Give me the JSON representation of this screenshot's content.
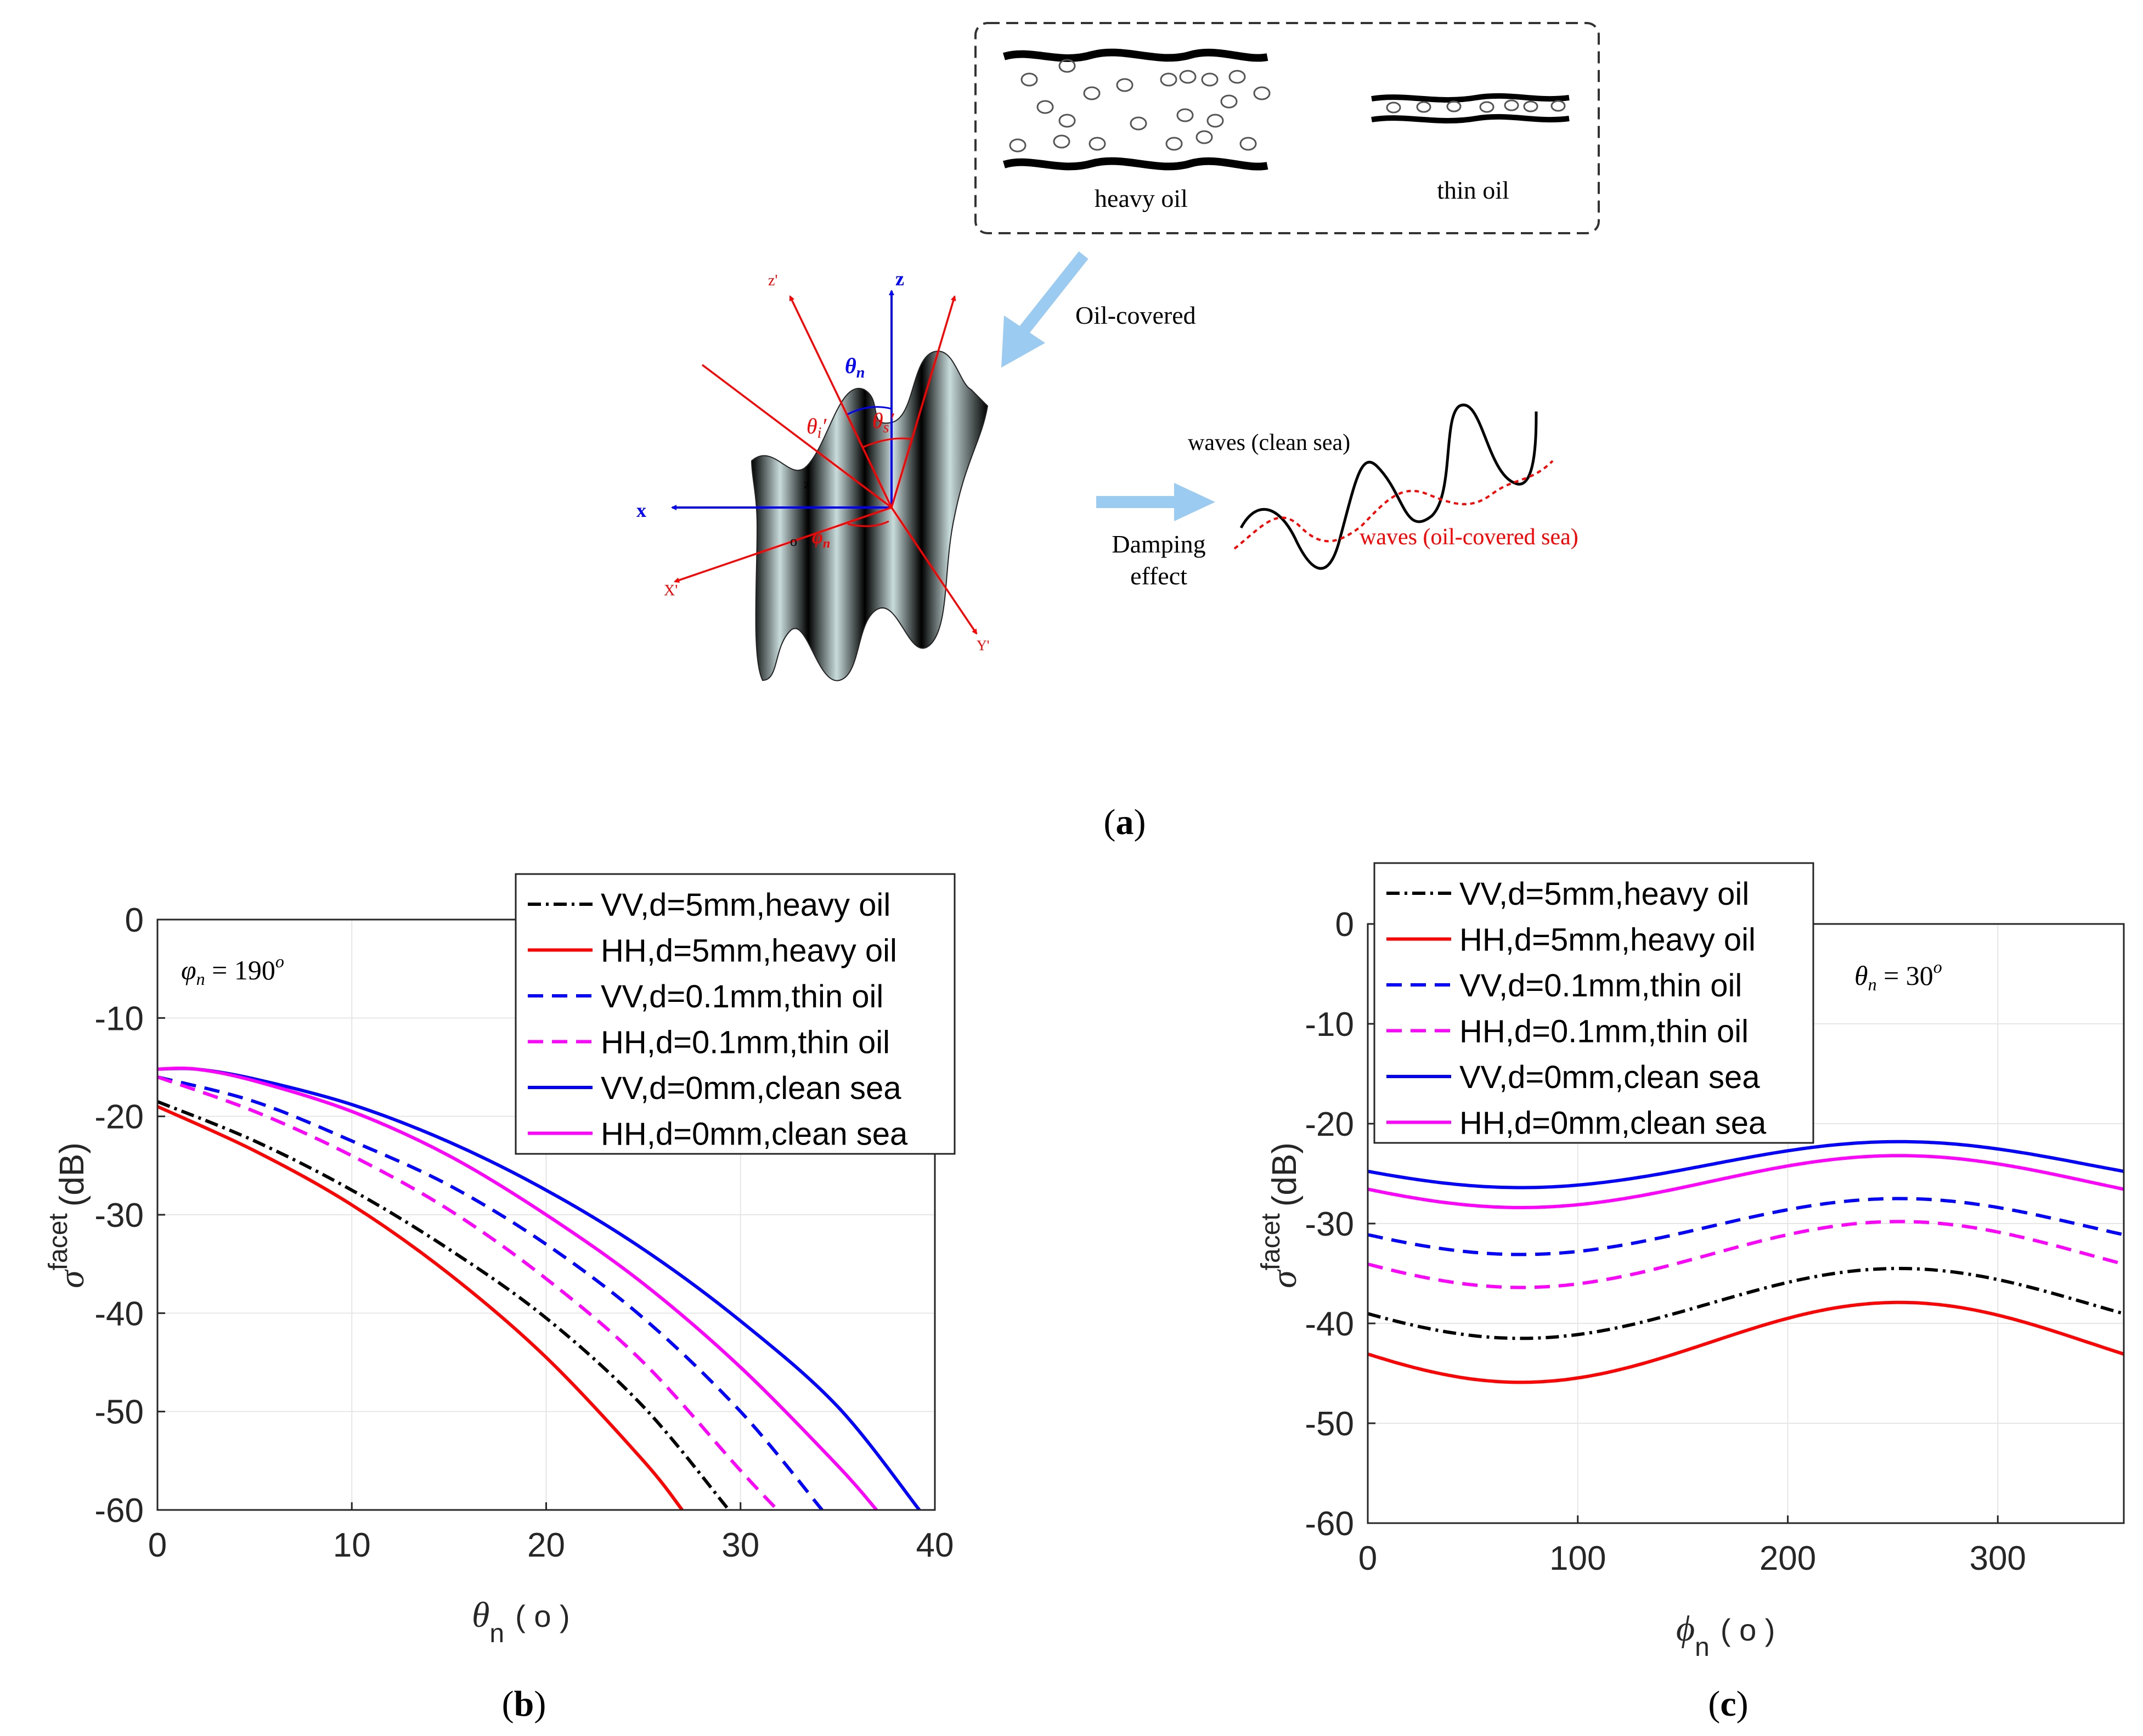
{
  "panel_a": {
    "heavy_oil_label": "heavy oil",
    "thin_oil_label": "thin oil",
    "oil_covered_label": "Oil-covered",
    "damping_label_1": "Damping",
    "damping_label_2": "effect",
    "clean_wave_label": "waves (clean sea)",
    "oil_wave_label": "waves (oil-covered sea)",
    "axis_z_label": "z",
    "axis_x_label": "x",
    "axis_zp_label": "z'",
    "axis_xp_label": "X'",
    "axis_yp_label": "Y'",
    "theta_n_label": "θ",
    "theta_n_sub": "n",
    "theta_i_label": "θ",
    "theta_i_sub": "i",
    "theta_s_label": "θ",
    "theta_s_sub": "s",
    "phi_n_label": "φ",
    "phi_n_sub": "n",
    "origin_label": "o",
    "z_small_label": "z",
    "caption": "a"
  },
  "chart_data": [
    {
      "id": "b",
      "type": "line",
      "caption": "b",
      "annotation": "φn = 190°",
      "annotation_symbol": "φ",
      "annotation_sub": "n",
      "annotation_value": " = 190",
      "annotation_sup": "o",
      "xlabel_symbol": "θ",
      "xlabel_sub": "n",
      "xlabel_unit": "( o )",
      "ylabel_symbol": "σ",
      "ylabel_sup": "facet",
      "ylabel_unit": "(dB)",
      "xlim": [
        0,
        40
      ],
      "ylim": [
        -60,
        0
      ],
      "xticks": [
        0,
        10,
        20,
        30,
        40
      ],
      "yticks": [
        0,
        -10,
        -20,
        -30,
        -40,
        -50,
        -60
      ],
      "grid": true,
      "legend_position": "top-right",
      "series": [
        {
          "name": "VV,d=5mm,heavy oil",
          "color": "#000000",
          "dash": "dashdot",
          "x": [
            0,
            5,
            10,
            15,
            20,
            25,
            29.4
          ],
          "y": [
            -18.5,
            -22.5,
            -27.5,
            -33.5,
            -40.5,
            -49.5,
            -60
          ]
        },
        {
          "name": "HH,d=5mm,heavy oil",
          "color": "#ff0000",
          "dash": "solid",
          "x": [
            0,
            5,
            10,
            15,
            20,
            25,
            27.0
          ],
          "y": [
            -19,
            -23.5,
            -29,
            -36,
            -44.5,
            -55,
            -60
          ]
        },
        {
          "name": "VV,d=0.1mm,thin oil",
          "color": "#0000ff",
          "dash": "dashed",
          "x": [
            0,
            5,
            10,
            15,
            20,
            25,
            30,
            34.2
          ],
          "y": [
            -16,
            -18.5,
            -22.5,
            -27,
            -33,
            -40.5,
            -50,
            -60
          ]
        },
        {
          "name": "HH,d=0.1mm,thin oil",
          "color": "#ff00ff",
          "dash": "dashed",
          "x": [
            0,
            5,
            10,
            15,
            20,
            25,
            30,
            31.9
          ],
          "y": [
            -16,
            -19.5,
            -24,
            -29.5,
            -36.5,
            -45,
            -56,
            -60
          ]
        },
        {
          "name": "VV,d=0mm,clean sea",
          "color": "#0000ff",
          "dash": "solid",
          "x": [
            0,
            2,
            5,
            10,
            15,
            20,
            25,
            30,
            35,
            39.2
          ],
          "y": [
            -15.2,
            -15.2,
            -16.2,
            -18.8,
            -22.6,
            -27.5,
            -33.5,
            -40.8,
            -49.5,
            -60
          ]
        },
        {
          "name": "HH,d=0mm,clean sea",
          "color": "#ff00ff",
          "dash": "solid",
          "x": [
            0,
            2,
            5,
            10,
            15,
            20,
            25,
            30,
            35,
            37.0
          ],
          "y": [
            -15.2,
            -15.2,
            -16.4,
            -19.5,
            -24,
            -30,
            -37,
            -45.5,
            -55.5,
            -60
          ]
        }
      ]
    },
    {
      "id": "c",
      "type": "line",
      "caption": "c",
      "annotation": "θn = 30°",
      "annotation_symbol": "θ",
      "annotation_sub": "n",
      "annotation_value": " = 30",
      "annotation_sup": "o",
      "xlabel_symbol": "ϕ",
      "xlabel_sub": "n",
      "xlabel_unit": "( o )",
      "ylabel_symbol": "σ",
      "ylabel_sup": "facet",
      "ylabel_unit": "(dB)",
      "xlim": [
        0,
        360
      ],
      "ylim": [
        -60,
        0
      ],
      "xticks": [
        0,
        100,
        200,
        300
      ],
      "yticks": [
        0,
        -10,
        -20,
        -30,
        -40,
        -50,
        -60
      ],
      "grid": true,
      "legend_position": "top-left",
      "series": [
        {
          "name": "VV,d=5mm,heavy oil",
          "color": "#000000",
          "dash": "dashdot",
          "mean": -38,
          "amp": 3.5
        },
        {
          "name": "HH,d=5mm,heavy oil",
          "color": "#ff0000",
          "dash": "solid",
          "mean": -41.9,
          "amp": 4.0
        },
        {
          "name": "VV,d=0.1mm,thin oil",
          "color": "#0000ff",
          "dash": "dashed",
          "mean": -30.3,
          "amp": 2.8
        },
        {
          "name": "HH,d=0.1mm,thin oil",
          "color": "#ff00ff",
          "dash": "dashed",
          "mean": -33.1,
          "amp": 3.3
        },
        {
          "name": "VV,d=0mm,clean sea",
          "color": "#0000ff",
          "dash": "solid",
          "mean": -24.1,
          "amp": 2.3
        },
        {
          "name": "HH,d=0mm,clean sea",
          "color": "#ff00ff",
          "dash": "solid",
          "mean": -25.8,
          "amp": 2.6
        }
      ]
    }
  ]
}
